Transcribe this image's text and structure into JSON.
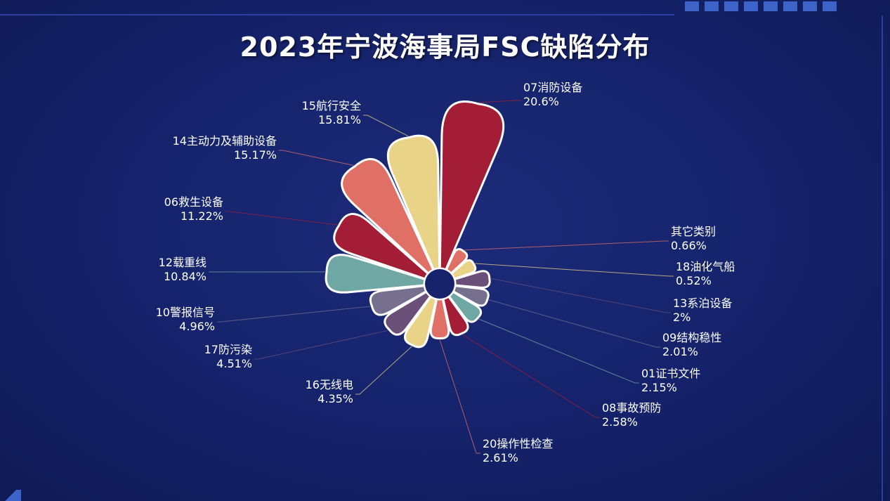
{
  "title": "2023年宁波海事局FSC缺陷分布",
  "chart_data": {
    "type": "pie",
    "variant": "nightingale-rose",
    "title": "2023年宁波海事局FSC缺陷分布",
    "colors": [
      "#a21d35",
      "#e07066",
      "#e9d386",
      "#6a4f78",
      "#76708e",
      "#6fa7a4"
    ],
    "slices": [
      {
        "name": "07消防设备",
        "value": 20.6,
        "label": "20.6%"
      },
      {
        "name": "其它类别",
        "value": 0.66,
        "label": "0.66%"
      },
      {
        "name": "18油化气船",
        "value": 0.52,
        "label": "0.52%"
      },
      {
        "name": "13系泊设备",
        "value": 2,
        "label": "2%"
      },
      {
        "name": "09结构稳性",
        "value": 2.01,
        "label": "2.01%"
      },
      {
        "name": "01证书文件",
        "value": 2.15,
        "label": "2.15%"
      },
      {
        "name": "08事故预防",
        "value": 2.58,
        "label": "2.58%"
      },
      {
        "name": "20操作性检查",
        "value": 2.61,
        "label": "2.61%"
      },
      {
        "name": "16无线电",
        "value": 4.35,
        "label": "4.35%"
      },
      {
        "name": "17防污染",
        "value": 4.51,
        "label": "4.51%"
      },
      {
        "name": "10警报信号",
        "value": 4.96,
        "label": "4.96%"
      },
      {
        "name": "12载重线",
        "value": 10.84,
        "label": "10.84%"
      },
      {
        "name": "06救生设备",
        "value": 11.22,
        "label": "11.22%"
      },
      {
        "name": "14主动力及辅助设备",
        "value": 15.17,
        "label": "15.17%"
      },
      {
        "name": "15航行安全",
        "value": 15.81,
        "label": "15.81%"
      }
    ]
  }
}
